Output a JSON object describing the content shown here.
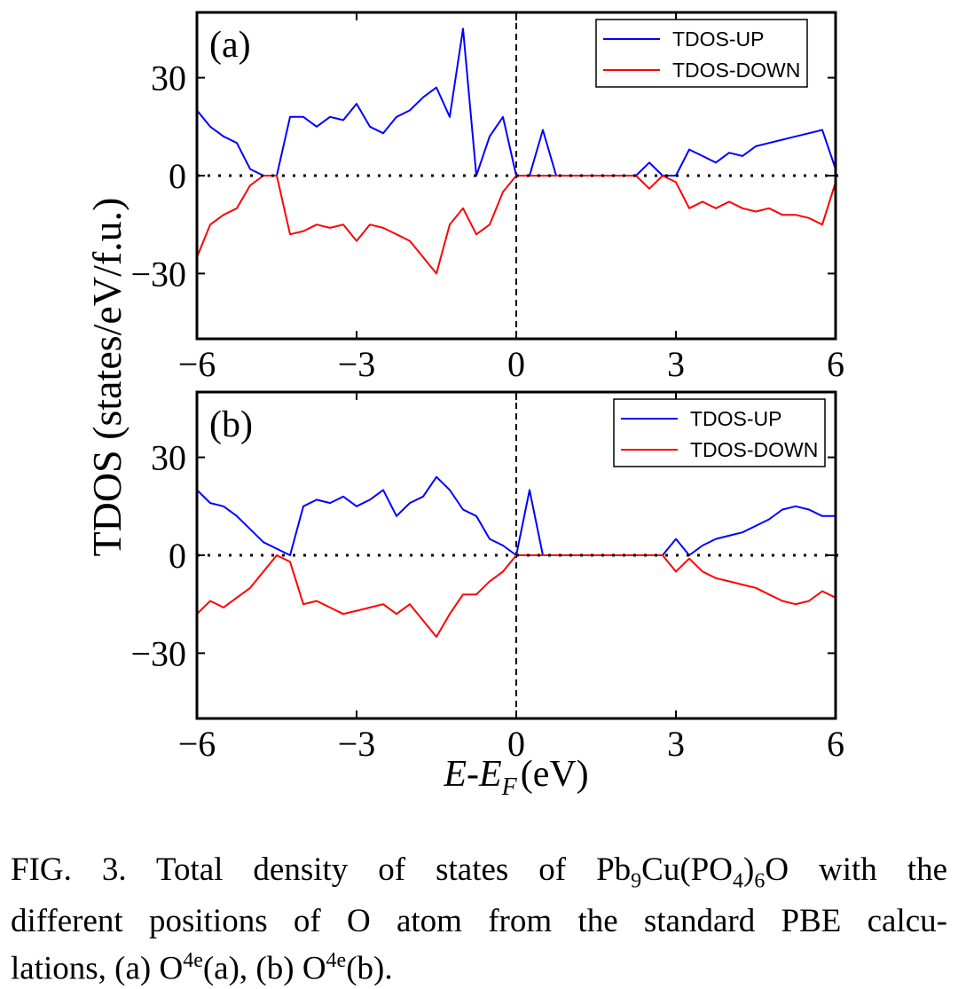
{
  "chart_data": [
    {
      "type": "line",
      "panel_label": "(a)",
      "ylabel": "TDOS (states/eV/f.u.)",
      "x": [
        -6,
        -5.75,
        -5.5,
        -5.25,
        -5,
        -4.75,
        -4.5,
        -4.25,
        -4,
        -3.75,
        -3.5,
        -3.25,
        -3,
        -2.75,
        -2.5,
        -2.25,
        -2,
        -1.75,
        -1.5,
        -1.25,
        -1,
        -0.75,
        -0.5,
        -0.25,
        0,
        0.25,
        0.5,
        0.75,
        1,
        1.25,
        1.5,
        1.75,
        2,
        2.25,
        2.5,
        2.75,
        3,
        3.25,
        3.5,
        3.75,
        4,
        4.25,
        4.5,
        4.75,
        5,
        5.25,
        5.5,
        5.75,
        6
      ],
      "series": [
        {
          "name": "TDOS-UP",
          "color": "#0000ff",
          "values": [
            20,
            15,
            12,
            10,
            2,
            0,
            0,
            18,
            18,
            15,
            18,
            17,
            22,
            15,
            13,
            18,
            20,
            24,
            27,
            18,
            45,
            0,
            12,
            18,
            0,
            0,
            14,
            0,
            0,
            0,
            0,
            0,
            0,
            0,
            4,
            0,
            0,
            8,
            6,
            4,
            7,
            6,
            9,
            10,
            11,
            12,
            13,
            14,
            2
          ]
        },
        {
          "name": "TDOS-DOWN",
          "color": "#ff0000",
          "values": [
            -25,
            -15,
            -12,
            -10,
            -3,
            0,
            0,
            -18,
            -17,
            -15,
            -16,
            -15,
            -20,
            -15,
            -16,
            -18,
            -20,
            -25,
            -30,
            -15,
            -10,
            -18,
            -15,
            -5,
            0,
            0,
            0,
            0,
            0,
            0,
            0,
            0,
            0,
            0,
            -4,
            0,
            -2,
            -10,
            -8,
            -10,
            -8,
            -10,
            -11,
            -10,
            -12,
            -12,
            -13,
            -15,
            -2
          ]
        }
      ],
      "xlim": [
        -6,
        6
      ],
      "xticks": [
        {
          "value": -6,
          "label": "−6"
        },
        {
          "value": -3,
          "label": "−3"
        },
        0,
        3,
        6
      ],
      "ylim": [
        -50,
        50
      ],
      "yticks": [
        {
          "value": -30,
          "label": "−30"
        },
        0,
        30
      ],
      "legend": "upper right"
    },
    {
      "type": "line",
      "panel_label": "(b)",
      "xlabel": {
        "main": "E-E",
        "sub": "F",
        "unit": "(eV)"
      },
      "x": [
        -6,
        -5.75,
        -5.5,
        -5.25,
        -5,
        -4.75,
        -4.5,
        -4.25,
        -4,
        -3.75,
        -3.5,
        -3.25,
        -3,
        -2.75,
        -2.5,
        -2.25,
        -2,
        -1.75,
        -1.5,
        -1.25,
        -1,
        -0.75,
        -0.5,
        -0.25,
        0,
        0.25,
        0.5,
        0.75,
        1,
        1.25,
        1.5,
        1.75,
        2,
        2.25,
        2.5,
        2.75,
        3,
        3.25,
        3.5,
        3.75,
        4,
        4.25,
        4.5,
        4.75,
        5,
        5.25,
        5.5,
        5.75,
        6
      ],
      "series": [
        {
          "name": "TDOS-UP",
          "color": "#0000ff",
          "values": [
            20,
            16,
            15,
            12,
            8,
            4,
            2,
            0,
            15,
            17,
            16,
            18,
            15,
            17,
            20,
            12,
            16,
            18,
            24,
            20,
            14,
            12,
            5,
            3,
            0,
            20,
            0,
            0,
            0,
            0,
            0,
            0,
            0,
            0,
            0,
            0,
            5,
            0,
            3,
            5,
            6,
            7,
            9,
            11,
            14,
            15,
            14,
            12,
            12
          ]
        },
        {
          "name": "TDOS-DOWN",
          "color": "#ff0000",
          "values": [
            -18,
            -14,
            -16,
            -13,
            -10,
            -5,
            0,
            -2,
            -15,
            -14,
            -16,
            -18,
            -17,
            -16,
            -15,
            -18,
            -15,
            -20,
            -25,
            -18,
            -12,
            -12,
            -8,
            -5,
            0,
            0,
            0,
            0,
            0,
            0,
            0,
            0,
            0,
            0,
            0,
            0,
            -5,
            -1,
            -5,
            -7,
            -8,
            -9,
            -10,
            -12,
            -14,
            -15,
            -14,
            -11,
            -13
          ]
        }
      ],
      "xlim": [
        -6,
        6
      ],
      "xticks": [
        {
          "value": -6,
          "label": "−6"
        },
        {
          "value": -3,
          "label": "−3"
        },
        0,
        3,
        6
      ],
      "ylim": [
        -50,
        50
      ],
      "yticks": [
        {
          "value": -30,
          "label": "−30"
        },
        0,
        30
      ],
      "legend": "upper right"
    }
  ],
  "caption": [
    [
      "FIG. 3.  Total density of states of Pb",
      {
        "sub": "9"
      },
      "Cu(PO",
      {
        "sub": "4"
      },
      ")",
      {
        "sub": "6"
      },
      "O with the"
    ],
    [
      "different positions of O atom from the standard PBE calcu-"
    ],
    [
      "lations, (a) O",
      {
        "sup": "4e"
      },
      "(a), (b) O",
      {
        "sup": "4e"
      },
      "(b)."
    ]
  ]
}
